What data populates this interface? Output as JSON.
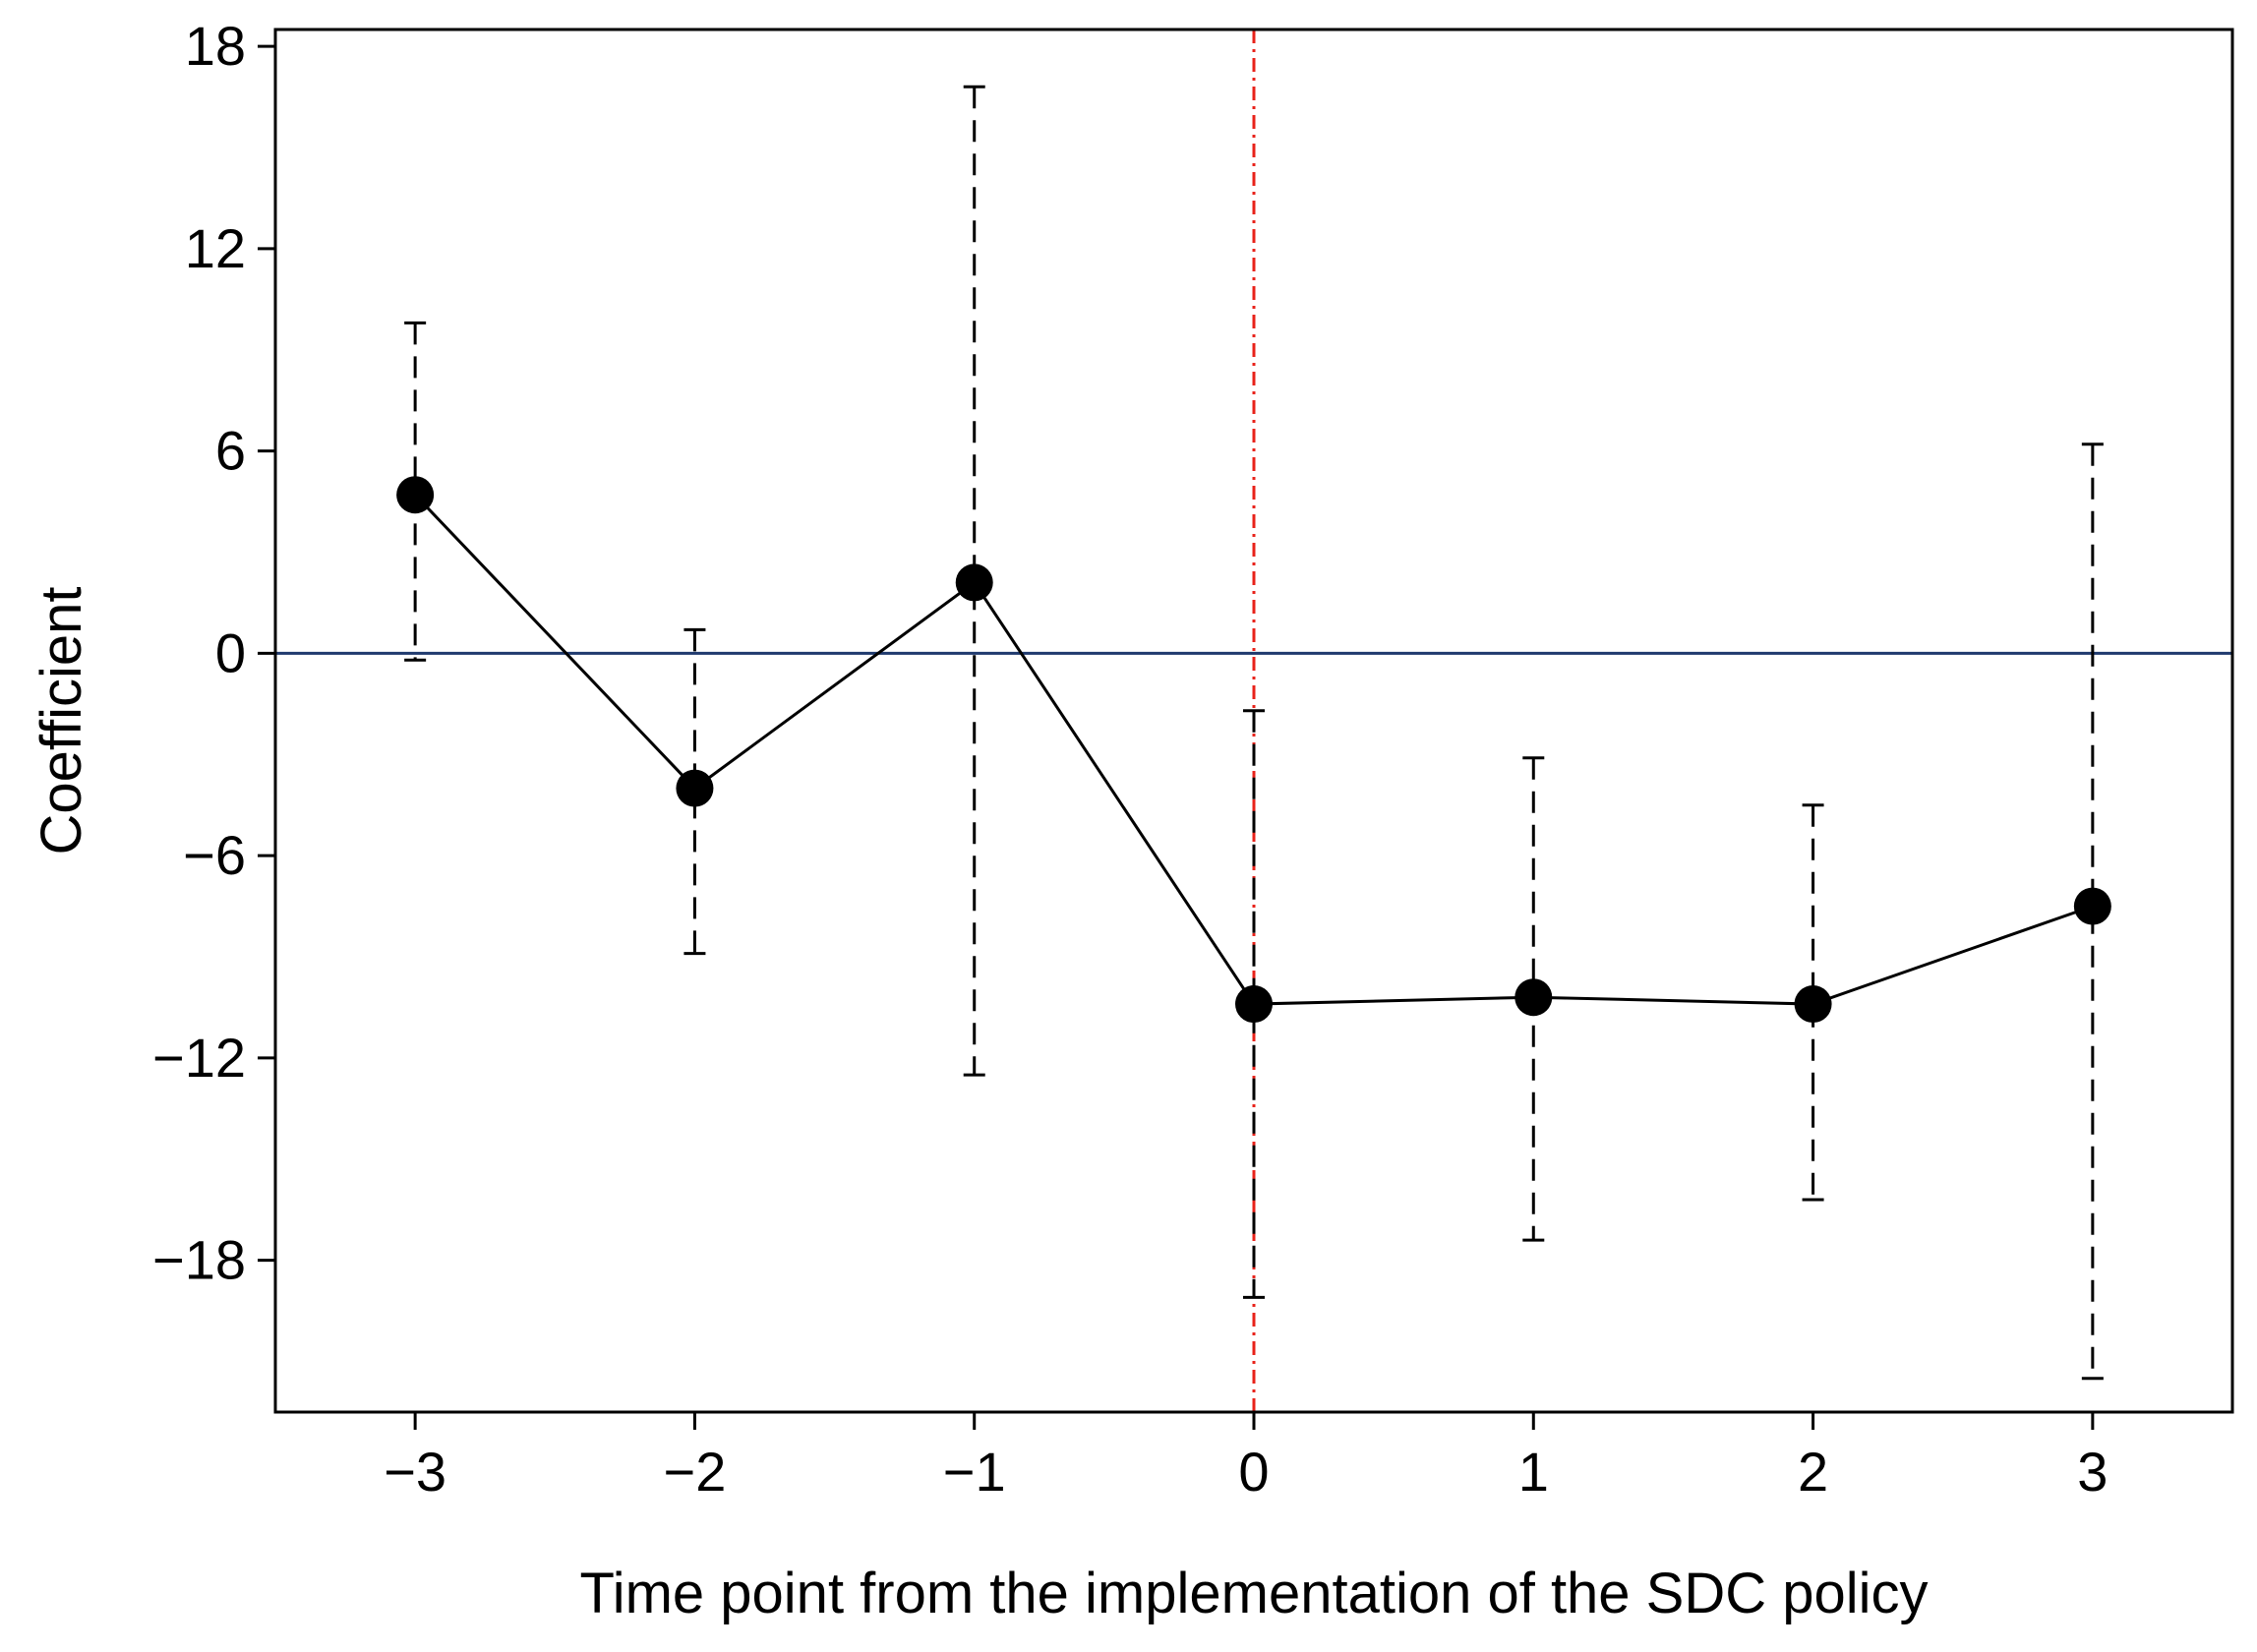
{
  "chart_data": {
    "type": "line",
    "title": "",
    "xlabel": "Time point from the implementation of the SDC policy",
    "ylabel": "Coefficient",
    "x": [
      -3,
      -2,
      -1,
      0,
      1,
      2,
      3
    ],
    "x_tick_labels": [
      "−3",
      "−2",
      "−1",
      "0",
      "1",
      "2",
      "3"
    ],
    "y_ticks": [
      18,
      12,
      6,
      0,
      -6,
      -12,
      -18
    ],
    "y_tick_labels": [
      "18",
      "12",
      "6",
      "0",
      "−6",
      "−12",
      "−18"
    ],
    "xlim": [
      -3.5,
      3.5
    ],
    "ylim": [
      -22.5,
      18.5
    ],
    "grid": false,
    "series": [
      {
        "name": "Coefficient",
        "values": [
          4.7,
          -4.0,
          2.1,
          -10.4,
          -10.2,
          -10.4,
          -7.5
        ],
        "ci_lower": [
          -0.2,
          -8.9,
          -12.5,
          -19.1,
          -17.4,
          -16.2,
          -21.5
        ],
        "ci_upper": [
          9.8,
          0.7,
          16.8,
          -1.7,
          -3.1,
          -4.5,
          6.2
        ]
      }
    ],
    "reference_lines": [
      {
        "orientation": "horizontal",
        "value": 0,
        "color": "#1f3a6e",
        "style": "solid"
      },
      {
        "orientation": "vertical",
        "value": 0,
        "color": "#e8221a",
        "style": "dash-dot"
      }
    ],
    "colors": {
      "series": "#000000",
      "errorbar": "#000000",
      "axis": "#000000"
    }
  }
}
